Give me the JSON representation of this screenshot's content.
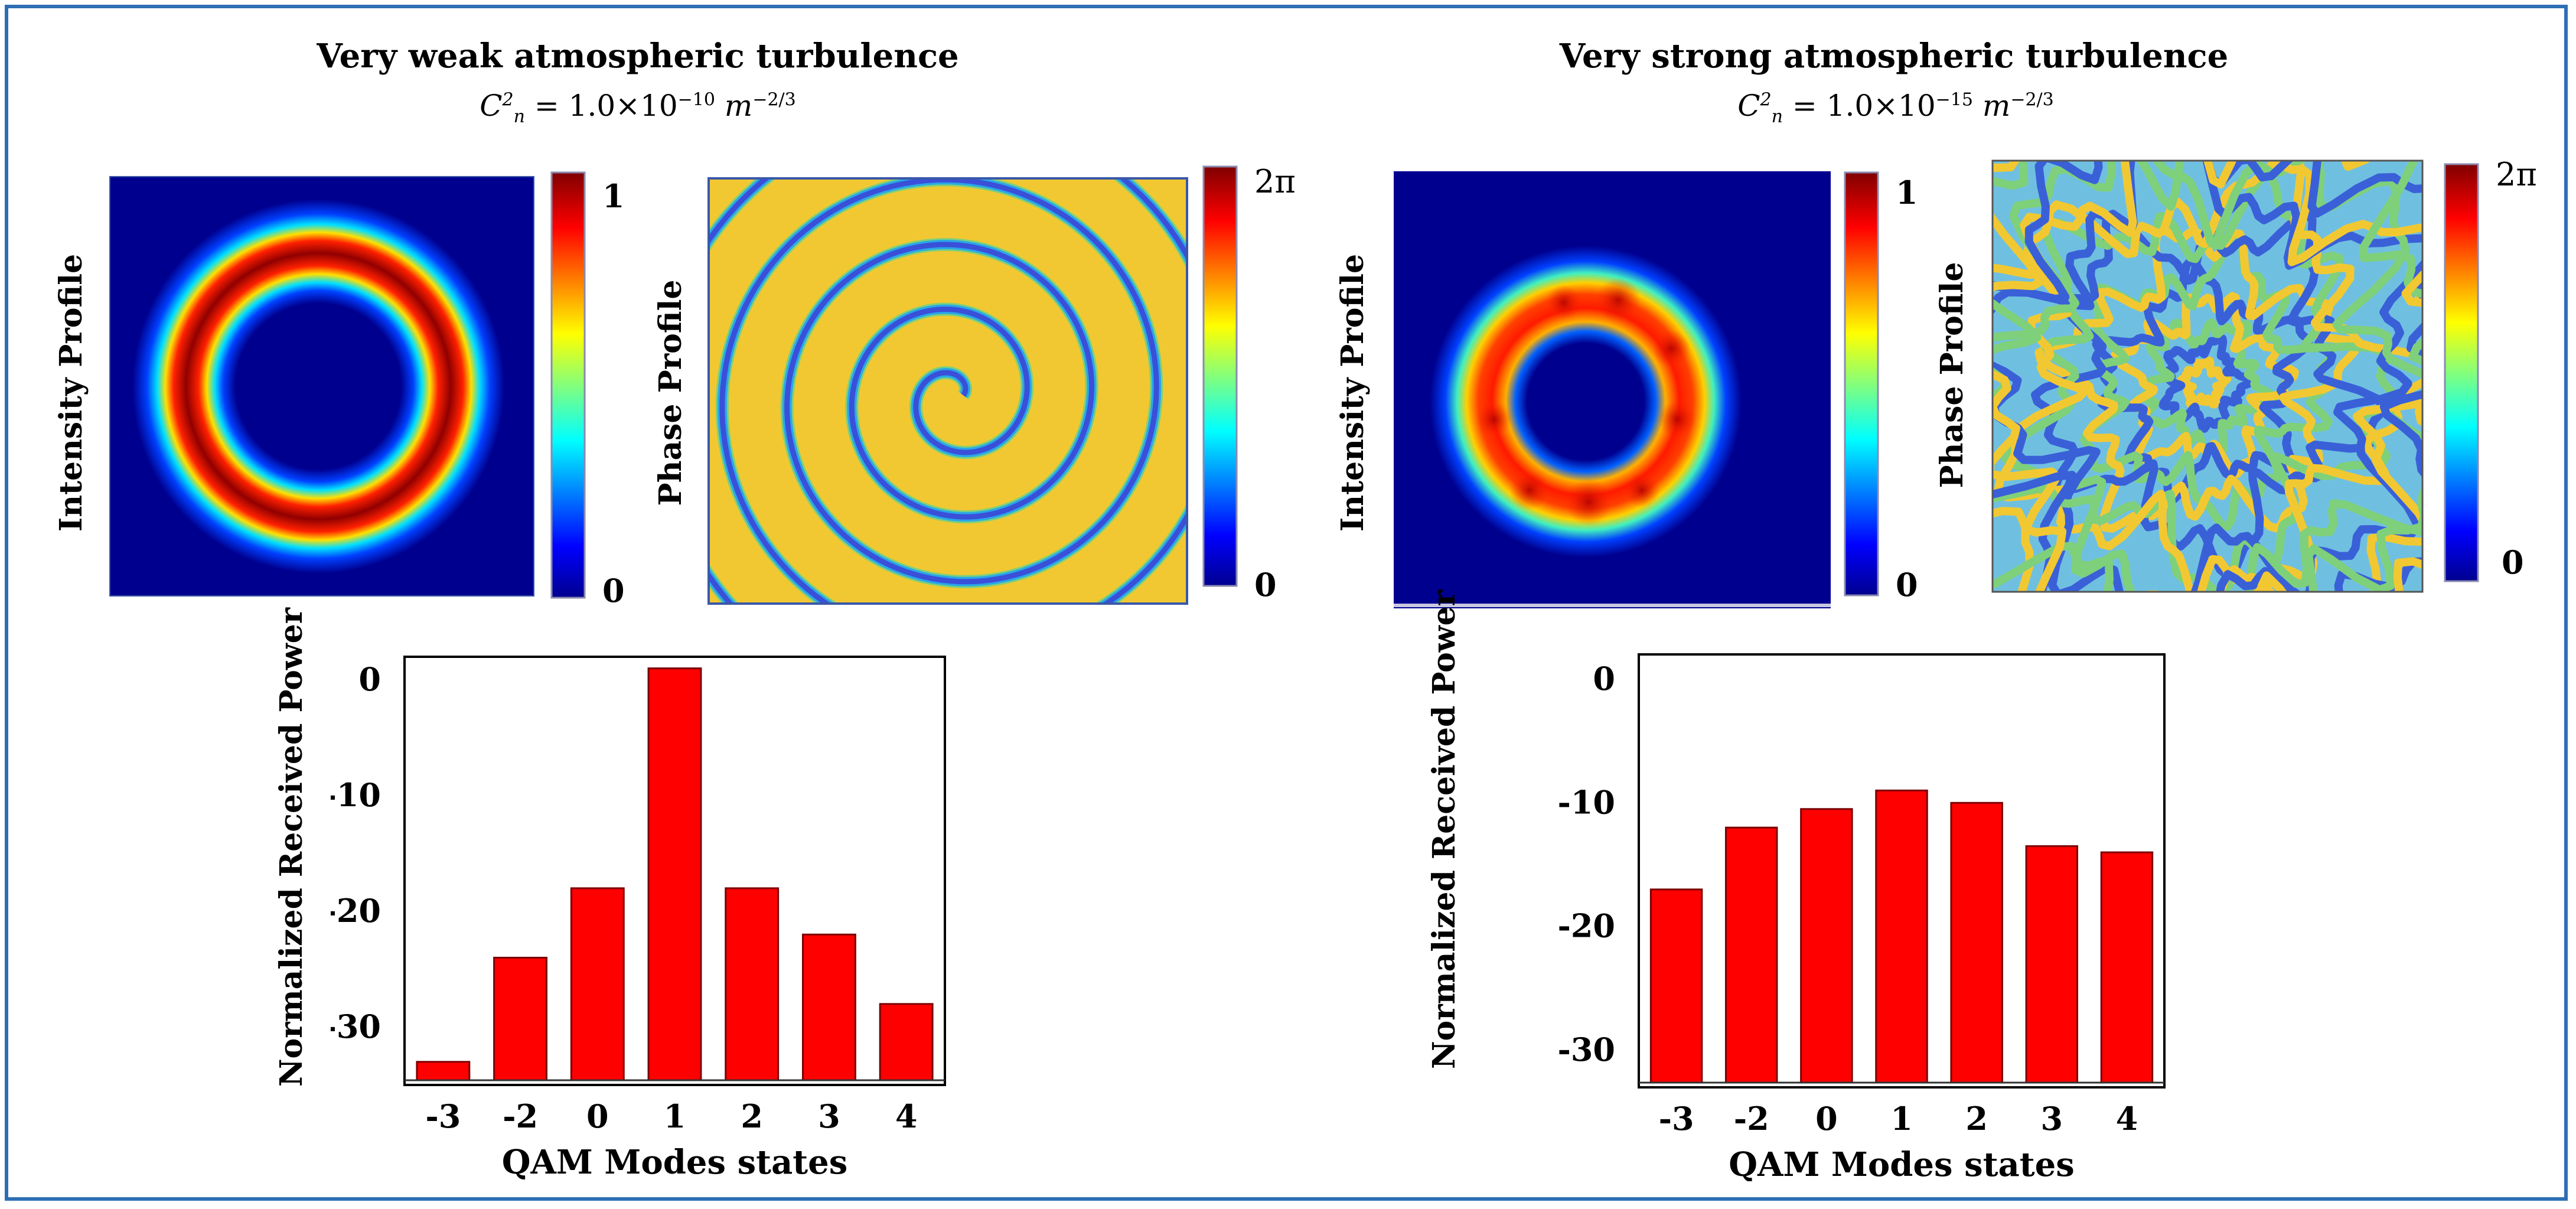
{
  "colors": {
    "border": "#2e6fb4",
    "bar": "#ff0000",
    "bar_edge": "#7a0000",
    "jet_dark_blue": "#00008f",
    "jet_dark_red": "#800000"
  },
  "panels": [
    {
      "title": "Very weak atmospheric turbulence",
      "formula": {
        "base": "C",
        "sup": "2",
        "sub": "n",
        "text": "= 1.0×10",
        "exp": "−10",
        "unit": "m",
        "unit_exp": "−2/3"
      },
      "intensity": {
        "ylabel": "Intensity Profile",
        "cb_max": "1",
        "cb_min": "0",
        "icon": "ring-beam-icon"
      },
      "phase": {
        "ylabel": "Phase Profile",
        "cb_max": "2π",
        "cb_min": "0",
        "icon": "spiral-phase-icon"
      }
    },
    {
      "title": "Very strong atmospheric turbulence",
      "formula": {
        "base": "C",
        "sup": "2",
        "sub": "n",
        "text": "= 1.0×10",
        "exp": "−15",
        "unit": "m",
        "unit_exp": "−2/3"
      },
      "intensity": {
        "ylabel": "Intensity Profile",
        "cb_max": "1",
        "cb_min": "0",
        "icon": "distorted-ring-beam-icon"
      },
      "phase": {
        "ylabel": "Phase Profile",
        "cb_max": "2π",
        "cb_min": "0",
        "icon": "turbulent-phase-icon"
      }
    }
  ],
  "chart_data": [
    {
      "type": "bar",
      "title": "Very weak atmospheric turbulence",
      "categories": [
        "-3",
        "-2",
        "0",
        "1",
        "2",
        "3",
        "4"
      ],
      "values": [
        -33,
        -24,
        -18,
        1,
        -18,
        -22,
        -28
      ],
      "xlabel": "QAM Modes states",
      "ylabel": "Normalized Received Power",
      "yticks": [
        "0",
        "-10",
        "-20",
        "-30"
      ],
      "ylim": [
        -35,
        2
      ]
    },
    {
      "type": "bar",
      "title": "Very strong atmospheric turbulence",
      "categories": [
        "-3",
        "-2",
        "0",
        "1",
        "2",
        "3",
        "4"
      ],
      "values": [
        -17,
        -12,
        -10.5,
        -9,
        -10,
        -13.5,
        -14
      ],
      "xlabel": "QAM Modes states",
      "ylabel": "Normalized Received Power",
      "yticks": [
        "0",
        "-10",
        "-20",
        "-30"
      ],
      "ylim": [
        -33,
        2
      ]
    }
  ]
}
